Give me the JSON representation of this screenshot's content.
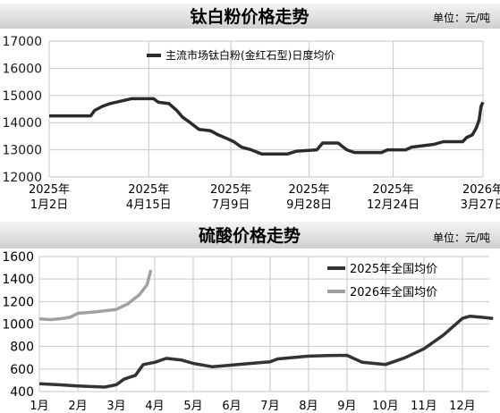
{
  "chart_data": [
    {
      "type": "line",
      "title": "钛白粉价格走势",
      "unit": "单位：元/吨",
      "legend_position": "top-center",
      "ylim": [
        12000,
        17000
      ],
      "yticks": [
        "12000",
        "13000",
        "14000",
        "15000",
        "16000",
        "17000"
      ],
      "xticks": [
        {
          "year": "2025年",
          "date": "1月2日"
        },
        {
          "year": "2025年",
          "date": "4月15日"
        },
        {
          "year": "2025年",
          "date": "7月9日"
        },
        {
          "year": "2025年",
          "date": "9月28日"
        },
        {
          "year": "2025年",
          "date": "12月24日"
        },
        {
          "year": "2026年",
          "date": "3月27日"
        }
      ],
      "xtick_dates": [
        "2025-01-02",
        "2025-04-15",
        "2025-07-09",
        "2025-09-28",
        "2025-12-24",
        "2026-03-27"
      ],
      "grid": true,
      "series": [
        {
          "name": "主流市场钛白粉(金红石型)日度均价",
          "color": "#2b2b2b",
          "points": [
            [
              "2025-01-02",
              14250
            ],
            [
              "2025-02-14",
              14250
            ],
            [
              "2025-02-18",
              14450
            ],
            [
              "2025-02-26",
              14600
            ],
            [
              "2025-03-06",
              14700
            ],
            [
              "2025-03-18",
              14800
            ],
            [
              "2025-03-28",
              14880
            ],
            [
              "2025-04-20",
              14880
            ],
            [
              "2025-04-25",
              14750
            ],
            [
              "2025-05-06",
              14700
            ],
            [
              "2025-05-14",
              14450
            ],
            [
              "2025-05-20",
              14200
            ],
            [
              "2025-05-28",
              14000
            ],
            [
              "2025-06-06",
              13750
            ],
            [
              "2025-06-18",
              13700
            ],
            [
              "2025-06-26",
              13550
            ],
            [
              "2025-07-06",
              13400
            ],
            [
              "2025-07-12",
              13300
            ],
            [
              "2025-07-20",
              13100
            ],
            [
              "2025-07-30",
              13000
            ],
            [
              "2025-08-10",
              12850
            ],
            [
              "2025-09-06",
              12850
            ],
            [
              "2025-09-15",
              12950
            ],
            [
              "2025-10-06",
              13000
            ],
            [
              "2025-10-12",
              13250
            ],
            [
              "2025-10-28",
              13250
            ],
            [
              "2025-11-06",
              13000
            ],
            [
              "2025-11-14",
              12900
            ],
            [
              "2025-12-12",
              12900
            ],
            [
              "2025-12-18",
              13000
            ],
            [
              "2026-01-06",
              13000
            ],
            [
              "2026-01-12",
              13100
            ],
            [
              "2026-02-04",
              13200
            ],
            [
              "2026-02-14",
              13300
            ],
            [
              "2026-03-06",
              13300
            ],
            [
              "2026-03-10",
              13450
            ],
            [
              "2026-03-16",
              13550
            ],
            [
              "2026-03-20",
              13800
            ],
            [
              "2026-03-23",
              14100
            ],
            [
              "2026-03-25",
              14600
            ],
            [
              "2026-03-27",
              14750
            ]
          ]
        }
      ]
    },
    {
      "type": "line",
      "title": "硫酸价格走势",
      "unit": "单位：元/吨",
      "legend_position": "right",
      "ylim": [
        400,
        1600
      ],
      "yticks": [
        "400",
        "600",
        "800",
        "1000",
        "1200",
        "1400",
        "1600"
      ],
      "categories": [
        "1月",
        "2月",
        "3月",
        "4月",
        "5月",
        "6月",
        "7月",
        "8月",
        "9月",
        "10月",
        "11月",
        "12月"
      ],
      "grid": true,
      "series": [
        {
          "name": "2025年全国均价",
          "color": "#333333",
          "points": [
            [
              1,
              470
            ],
            [
              1.5,
              460
            ],
            [
              2,
              450
            ],
            [
              2.7,
              440
            ],
            [
              3,
              460
            ],
            [
              3.2,
              510
            ],
            [
              3.5,
              545
            ],
            [
              3.7,
              640
            ],
            [
              4,
              660
            ],
            [
              4.3,
              695
            ],
            [
              4.7,
              680
            ],
            [
              5,
              650
            ],
            [
              5.5,
              620
            ],
            [
              6,
              635
            ],
            [
              6.5,
              650
            ],
            [
              7,
              665
            ],
            [
              7.2,
              690
            ],
            [
              8,
              715
            ],
            [
              8.5,
              720
            ],
            [
              9,
              722
            ],
            [
              9.4,
              660
            ],
            [
              10,
              640
            ],
            [
              10.5,
              700
            ],
            [
              11,
              780
            ],
            [
              11.5,
              900
            ],
            [
              12,
              1050
            ],
            [
              12.2,
              1070
            ],
            [
              12.5,
              1060
            ],
            [
              12.8,
              1050
            ]
          ]
        },
        {
          "name": "2026年全国均价",
          "color": "#a0a0a0",
          "points": [
            [
              1,
              1045
            ],
            [
              1.3,
              1040
            ],
            [
              1.5,
              1045
            ],
            [
              1.8,
              1060
            ],
            [
              2,
              1095
            ],
            [
              2.5,
              1110
            ],
            [
              3,
              1130
            ],
            [
              3.3,
              1180
            ],
            [
              3.6,
              1260
            ],
            [
              3.8,
              1350
            ],
            [
              3.9,
              1480
            ]
          ]
        }
      ]
    }
  ]
}
